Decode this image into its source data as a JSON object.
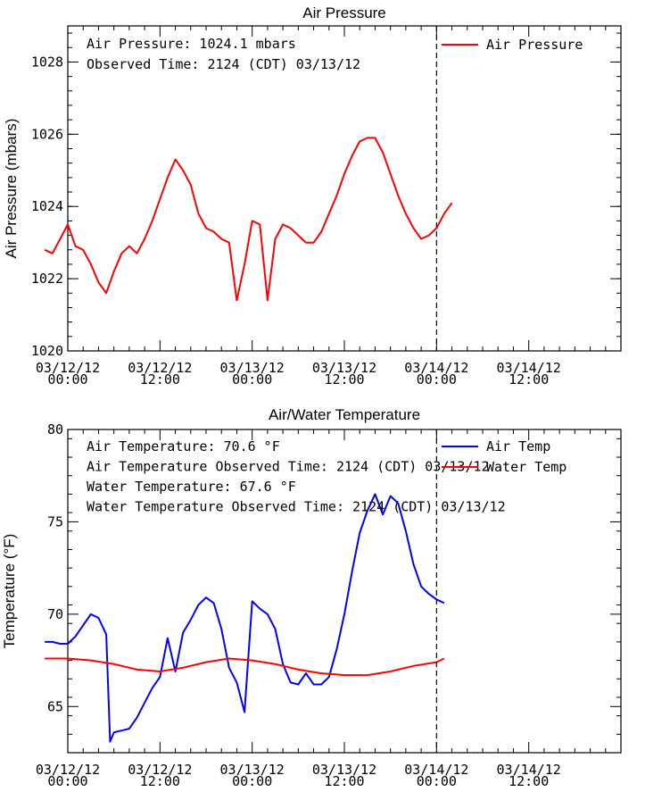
{
  "chart_data": [
    {
      "type": "line",
      "title": "Air Pressure",
      "ylabel": "Air Pressure (mbars)",
      "xlabel": "",
      "ylim": [
        1020,
        1029
      ],
      "xlim": [
        "03/12/12 00:00",
        "03/15/12 00:00"
      ],
      "x_ticks": [
        {
          "line1": "03/12/12",
          "line2": "00:00"
        },
        {
          "line1": "03/12/12",
          "line2": "12:00"
        },
        {
          "line1": "03/13/12",
          "line2": "00:00"
        },
        {
          "line1": "03/13/12",
          "line2": "12:00"
        },
        {
          "line1": "03/14/12",
          "line2": "00:00"
        },
        {
          "line1": "03/14/12",
          "line2": "12:00"
        }
      ],
      "y_ticks": [
        "1020",
        "1022",
        "1024",
        "1026",
        "1028"
      ],
      "y_tick_values": [
        1020,
        1022,
        1024,
        1026,
        1028
      ],
      "annotations": [
        "Air Pressure: 1024.1 mbars",
        "Observed Time: 2124 (CDT) 03/13/12"
      ],
      "now_marker": "03/14/12 00:00",
      "legend_position": "top-right",
      "series": [
        {
          "name": "Air Pressure",
          "color": "#ff0000",
          "points": [
            [
              "03/11/12 21:00",
              1022.8
            ],
            [
              "03/11/12 22:00",
              1022.7
            ],
            [
              "03/11/12 23:00",
              1023.1
            ],
            [
              "03/12/12 00:00",
              1023.5
            ],
            [
              "03/12/12 01:00",
              1022.9
            ],
            [
              "03/12/12 02:00",
              1022.8
            ],
            [
              "03/12/12 03:00",
              1022.4
            ],
            [
              "03/12/12 04:00",
              1021.9
            ],
            [
              "03/12/12 05:00",
              1021.6
            ],
            [
              "03/12/12 06:00",
              1022.2
            ],
            [
              "03/12/12 07:00",
              1022.7
            ],
            [
              "03/12/12 08:00",
              1022.9
            ],
            [
              "03/12/12 09:00",
              1022.7
            ],
            [
              "03/12/12 10:00",
              1023.1
            ],
            [
              "03/12/12 11:00",
              1023.6
            ],
            [
              "03/12/12 12:00",
              1024.2
            ],
            [
              "03/12/12 13:00",
              1024.8
            ],
            [
              "03/12/12 14:00",
              1025.3
            ],
            [
              "03/12/12 15:00",
              1025.0
            ],
            [
              "03/12/12 16:00",
              1024.6
            ],
            [
              "03/12/12 17:00",
              1023.8
            ],
            [
              "03/12/12 18:00",
              1023.4
            ],
            [
              "03/12/12 19:00",
              1023.3
            ],
            [
              "03/12/12 20:00",
              1023.1
            ],
            [
              "03/12/12 21:00",
              1023.0
            ],
            [
              "03/12/12 22:00",
              1021.4
            ],
            [
              "03/12/12 23:00",
              1022.4
            ],
            [
              "03/13/12 00:00",
              1023.6
            ],
            [
              "03/13/12 01:00",
              1023.5
            ],
            [
              "03/13/12 02:00",
              1021.4
            ],
            [
              "03/13/12 03:00",
              1023.1
            ],
            [
              "03/13/12 04:00",
              1023.5
            ],
            [
              "03/13/12 05:00",
              1023.4
            ],
            [
              "03/13/12 06:00",
              1023.2
            ],
            [
              "03/13/12 07:00",
              1023.0
            ],
            [
              "03/13/12 08:00",
              1023.0
            ],
            [
              "03/13/12 09:00",
              1023.3
            ],
            [
              "03/13/12 10:00",
              1023.8
            ],
            [
              "03/13/12 11:00",
              1024.3
            ],
            [
              "03/13/12 12:00",
              1024.9
            ],
            [
              "03/13/12 13:00",
              1025.4
            ],
            [
              "03/13/12 14:00",
              1025.8
            ],
            [
              "03/13/12 15:00",
              1025.9
            ],
            [
              "03/13/12 16:00",
              1025.9
            ],
            [
              "03/13/12 17:00",
              1025.5
            ],
            [
              "03/13/12 18:00",
              1024.9
            ],
            [
              "03/13/12 19:00",
              1024.3
            ],
            [
              "03/13/12 20:00",
              1023.8
            ],
            [
              "03/13/12 21:00",
              1023.4
            ],
            [
              "03/13/12 22:00",
              1023.1
            ],
            [
              "03/13/12 23:00",
              1023.2
            ],
            [
              "03/14/12 00:00",
              1023.4
            ],
            [
              "03/14/12 01:00",
              1023.8
            ],
            [
              "03/14/12 02:00",
              1024.1
            ]
          ]
        }
      ]
    },
    {
      "type": "line",
      "title": "Air/Water Temperature",
      "ylabel": "Temperature (°F)",
      "xlabel": "",
      "ylim": [
        62.5,
        80
      ],
      "xlim": [
        "03/12/12 00:00",
        "03/15/12 00:00"
      ],
      "x_ticks": [
        {
          "line1": "03/12/12",
          "line2": "00:00"
        },
        {
          "line1": "03/12/12",
          "line2": "12:00"
        },
        {
          "line1": "03/13/12",
          "line2": "00:00"
        },
        {
          "line1": "03/13/12",
          "line2": "12:00"
        },
        {
          "line1": "03/14/12",
          "line2": "00:00"
        },
        {
          "line1": "03/14/12",
          "line2": "12:00"
        }
      ],
      "y_ticks": [
        "65",
        "70",
        "75",
        "80"
      ],
      "y_tick_values": [
        65,
        70,
        75,
        80
      ],
      "annotations": [
        "Air Temperature:  70.6 °F",
        "Air Temperature Observed Time: 2124 (CDT) 03/13/12",
        "Water Temperature:  67.6 °F",
        "Water Temperature Observed Time: 2124 (CDT) 03/13/12"
      ],
      "now_marker": "03/14/12 00:00",
      "legend_position": "top-right",
      "series": [
        {
          "name": "Air Temp",
          "color": "#0000ff",
          "points": [
            [
              "03/11/12 21:00",
              68.5
            ],
            [
              "03/11/12 22:00",
              68.5
            ],
            [
              "03/11/12 23:00",
              68.4
            ],
            [
              "03/12/12 00:00",
              68.4
            ],
            [
              "03/12/12 01:00",
              68.8
            ],
            [
              "03/12/12 02:00",
              69.4
            ],
            [
              "03/12/12 03:00",
              70.0
            ],
            [
              "03/12/12 04:00",
              69.8
            ],
            [
              "03/12/12 05:00",
              68.9
            ],
            [
              "03/12/12 05:30",
              63.1
            ],
            [
              "03/12/12 06:00",
              63.6
            ],
            [
              "03/12/12 07:00",
              63.7
            ],
            [
              "03/12/12 08:00",
              63.8
            ],
            [
              "03/12/12 09:00",
              64.4
            ],
            [
              "03/12/12 10:00",
              65.2
            ],
            [
              "03/12/12 11:00",
              66.0
            ],
            [
              "03/12/12 12:00",
              66.6
            ],
            [
              "03/12/12 13:00",
              68.7
            ],
            [
              "03/12/12 14:00",
              66.9
            ],
            [
              "03/12/12 15:00",
              69.0
            ],
            [
              "03/12/12 16:00",
              69.7
            ],
            [
              "03/12/12 17:00",
              70.5
            ],
            [
              "03/12/12 18:00",
              70.9
            ],
            [
              "03/12/12 19:00",
              70.6
            ],
            [
              "03/12/12 20:00",
              69.2
            ],
            [
              "03/12/12 21:00",
              67.1
            ],
            [
              "03/12/12 22:00",
              66.3
            ],
            [
              "03/12/12 23:00",
              64.7
            ],
            [
              "03/13/12 00:00",
              70.7
            ],
            [
              "03/13/12 01:00",
              70.3
            ],
            [
              "03/13/12 02:00",
              70.0
            ],
            [
              "03/13/12 03:00",
              69.2
            ],
            [
              "03/13/12 04:00",
              67.3
            ],
            [
              "03/13/12 05:00",
              66.3
            ],
            [
              "03/13/12 06:00",
              66.2
            ],
            [
              "03/13/12 07:00",
              66.8
            ],
            [
              "03/13/12 08:00",
              66.2
            ],
            [
              "03/13/12 09:00",
              66.2
            ],
            [
              "03/13/12 10:00",
              66.6
            ],
            [
              "03/13/12 11:00",
              68.1
            ],
            [
              "03/13/12 12:00",
              70.0
            ],
            [
              "03/13/12 13:00",
              72.3
            ],
            [
              "03/13/12 14:00",
              74.4
            ],
            [
              "03/13/12 15:00",
              75.6
            ],
            [
              "03/13/12 16:00",
              76.5
            ],
            [
              "03/13/12 17:00",
              75.4
            ],
            [
              "03/13/12 18:00",
              76.4
            ],
            [
              "03/13/12 19:00",
              76.0
            ],
            [
              "03/13/12 20:00",
              74.5
            ],
            [
              "03/13/12 21:00",
              72.7
            ],
            [
              "03/13/12 22:00",
              71.5
            ],
            [
              "03/13/12 23:00",
              71.1
            ],
            [
              "03/14/12 00:00",
              70.8
            ],
            [
              "03/14/12 01:00",
              70.6
            ]
          ]
        },
        {
          "name": "Water Temp",
          "color": "#ff0000",
          "points": [
            [
              "03/11/12 21:00",
              67.6
            ],
            [
              "03/12/12 00:00",
              67.6
            ],
            [
              "03/12/12 03:00",
              67.5
            ],
            [
              "03/12/12 06:00",
              67.3
            ],
            [
              "03/12/12 09:00",
              67.0
            ],
            [
              "03/12/12 12:00",
              66.9
            ],
            [
              "03/12/12 15:00",
              67.1
            ],
            [
              "03/12/12 18:00",
              67.4
            ],
            [
              "03/12/12 21:00",
              67.6
            ],
            [
              "03/13/12 00:00",
              67.5
            ],
            [
              "03/13/12 03:00",
              67.3
            ],
            [
              "03/13/12 06:00",
              67.0
            ],
            [
              "03/13/12 09:00",
              66.8
            ],
            [
              "03/13/12 12:00",
              66.7
            ],
            [
              "03/13/12 15:00",
              66.7
            ],
            [
              "03/13/12 18:00",
              66.9
            ],
            [
              "03/13/12 21:00",
              67.2
            ],
            [
              "03/14/12 00:00",
              67.4
            ],
            [
              "03/14/12 01:00",
              67.6
            ]
          ]
        }
      ]
    }
  ]
}
